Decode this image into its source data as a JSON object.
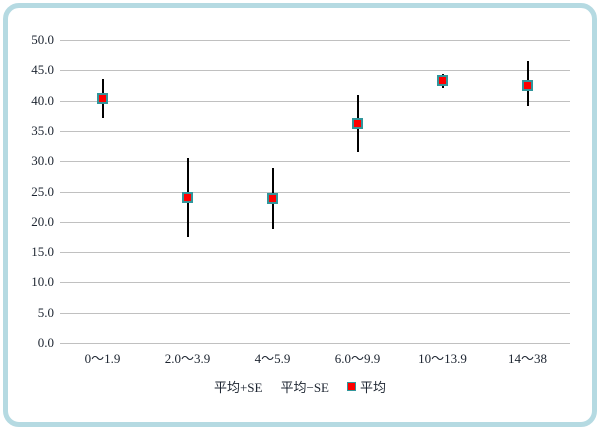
{
  "frame": {
    "border_color": "#b5dae2",
    "background": "#ffffff"
  },
  "chart_data": {
    "type": "scatter",
    "subtype": "mean-with-standard-error-bars",
    "title": "",
    "xlabel": "",
    "ylabel": "",
    "categories": [
      "0～1.9",
      "2.0～3.9",
      "4～5.9",
      "6.0～9.9",
      "10～13.9",
      "14～38"
    ],
    "series": [
      {
        "name": "平均+SE",
        "values": [
          43.6,
          30.5,
          28.8,
          41.0,
          44.4,
          46.6
        ]
      },
      {
        "name": "平均−SE",
        "values": [
          37.2,
          17.5,
          18.8,
          31.5,
          42.1,
          39.1
        ]
      },
      {
        "name": "平均",
        "values": [
          40.4,
          24.0,
          23.8,
          36.2,
          43.3,
          42.5
        ]
      }
    ],
    "ylim": [
      0,
      50
    ],
    "ytick_step": 5,
    "ytick_labels": [
      "0.0",
      "5.0",
      "10.0",
      "15.0",
      "20.0",
      "25.0",
      "30.0",
      "35.0",
      "40.0",
      "45.0",
      "50.0"
    ],
    "grid": true,
    "legend_position": "bottom",
    "legend_items": [
      {
        "label": "平均+SE",
        "marker": false
      },
      {
        "label": "平均−SE",
        "marker": false
      },
      {
        "label": "平均",
        "marker": true
      }
    ],
    "colors": {
      "gridline": "#c0c0c0",
      "error_bar": "#000000",
      "marker_fill": "#ff0000",
      "marker_border": "#31969b",
      "text": "#1c2430"
    }
  }
}
